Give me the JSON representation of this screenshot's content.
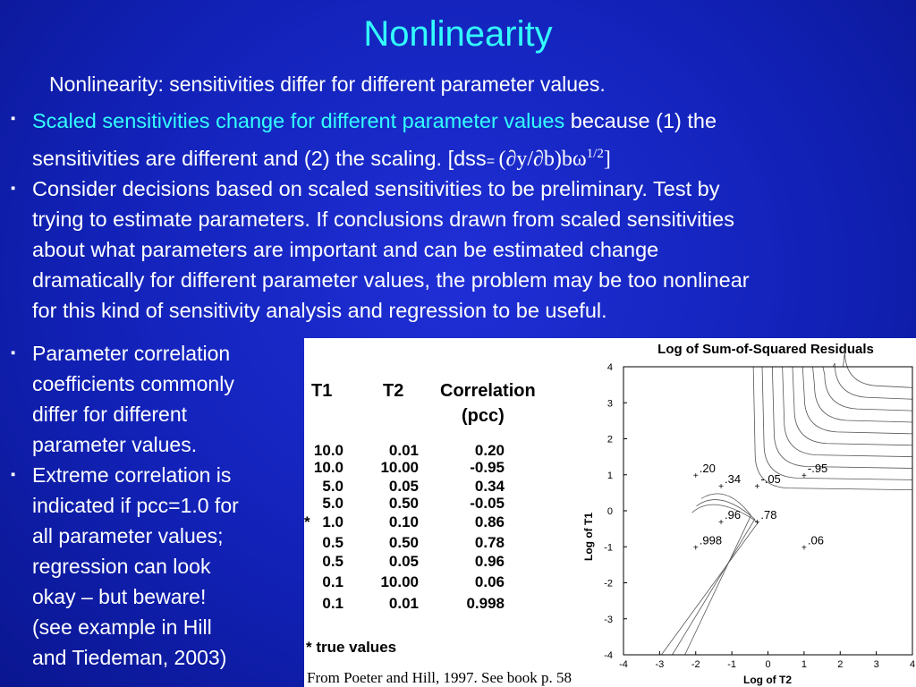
{
  "slide": {
    "title": "Nonlinearity",
    "subtitle": "Nonlinearity: sensitivities differ for different parameter values.",
    "bullet1": {
      "cyan_text": "Scaled sensitivities change for different parameter values",
      "text1": " because (1) the",
      "text2_line": "sensitivities are different and (2) the scaling. [dss",
      "formula_eq": "= ",
      "formula": "(∂y/∂b)bω",
      "formula_sup": "1/2",
      "formula_end": "]"
    },
    "bullet2": {
      "lines": [
        "Consider decisions based on scaled sensitivities to be preliminary. Test by",
        "trying to estimate parameters. If conclusions drawn from scaled sensitivities",
        "about what parameters are important and can be estimated  change",
        "dramatically for different parameter values, the problem may be too nonlinear",
        "for this kind of sensitivity analysis and regression to be useful."
      ]
    },
    "bullet3": {
      "lines": [
        "Parameter correlation",
        "coefficients commonly",
        "differ for different",
        "parameter values."
      ]
    },
    "bullet4": {
      "lines": [
        "Extreme correlation is",
        "indicated if pcc=1.0 for",
        "all parameter values;",
        "regression can look",
        "okay – but beware!",
        "(see example in Hill",
        "and Tiedeman, 2003)"
      ]
    },
    "bullet_marker": "▪"
  },
  "table": {
    "headers": [
      "T1",
      "T2",
      "Correlation",
      "(pcc)"
    ],
    "rows": [
      {
        "marker": "",
        "t1": "10.0",
        "t2": "0.01",
        "corr": "0.20"
      },
      {
        "marker": "",
        "t1": "10.0",
        "t2": "10.00",
        "corr": "-0.95"
      },
      {
        "marker": "",
        "t1": "5.0",
        "t2": "0.05",
        "corr": "0.34"
      },
      {
        "marker": "",
        "t1": "5.0",
        "t2": "0.50",
        "corr": "-0.05"
      },
      {
        "marker": "*",
        "t1": "1.0",
        "t2": "0.10",
        "corr": "0.86"
      },
      {
        "marker": "",
        "t1": "0.5",
        "t2": "0.50",
        "corr": "0.78"
      },
      {
        "marker": "",
        "t1": "0.5",
        "t2": "0.05",
        "corr": "0.96"
      },
      {
        "marker": "",
        "t1": "0.1",
        "t2": "10.00",
        "corr": "0.06"
      },
      {
        "marker": "",
        "t1": "0.1",
        "t2": "0.01",
        "corr": "0.998"
      }
    ],
    "footnote": "* true values"
  },
  "source": "From Poeter and Hill, 1997. See book p. 58",
  "chart_data": {
    "type": "contour",
    "title": "Log of Sum-of-Squared Residuals",
    "xlabel": "Log of T2",
    "ylabel": "Log of T1",
    "xlim": [
      -4,
      4
    ],
    "ylim": [
      -4,
      4
    ],
    "xticks": [
      "-4",
      "-3",
      "-2",
      "-1",
      "0",
      "1",
      "2",
      "3",
      "4"
    ],
    "yticks": [
      "4",
      "3",
      "2",
      "1",
      "0",
      "-1",
      "-2",
      "-3",
      "-4"
    ],
    "points": [
      {
        "x": -2.0,
        "y": 1.0,
        "label": ".20"
      },
      {
        "x": 1.0,
        "y": 1.0,
        "label": "-.95"
      },
      {
        "x": -1.3,
        "y": 0.7,
        "label": ".34"
      },
      {
        "x": -0.3,
        "y": 0.7,
        "label": "-.05"
      },
      {
        "x": -1.3,
        "y": -0.3,
        "label": ".96"
      },
      {
        "x": -0.3,
        "y": -0.3,
        "label": ".78"
      },
      {
        "x": -2.0,
        "y": -1.0,
        "label": ".998"
      },
      {
        "x": 1.0,
        "y": -1.0,
        "label": ".06"
      }
    ]
  }
}
